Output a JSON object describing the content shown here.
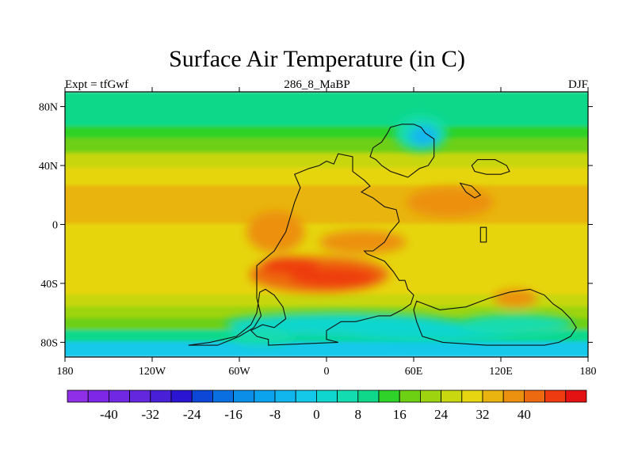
{
  "title": "Surface Air Temperature (in C)",
  "subtitle_left": "Expt = tfGwf",
  "subtitle_center": "286_8_MaBP",
  "subtitle_right": "DJF",
  "map": {
    "lon_range": [
      -180,
      180
    ],
    "lat_range": [
      -90,
      90
    ],
    "lon_ticks": [
      {
        "value": -180,
        "label": "180"
      },
      {
        "value": -120,
        "label": "120W"
      },
      {
        "value": -60,
        "label": "60W"
      },
      {
        "value": 0,
        "label": "0"
      },
      {
        "value": 60,
        "label": "60E"
      },
      {
        "value": 120,
        "label": "120E"
      },
      {
        "value": 180,
        "label": "180"
      }
    ],
    "lat_ticks": [
      {
        "value": 80,
        "label": "80N"
      },
      {
        "value": 40,
        "label": "40N"
      },
      {
        "value": 0,
        "label": "0"
      },
      {
        "value": -40,
        "label": "40S"
      },
      {
        "value": -80,
        "label": "80S"
      }
    ]
  },
  "colorbar": {
    "min": -48,
    "max": 48,
    "step": 4,
    "colors": [
      "#8f2fe8",
      "#7f27e6",
      "#7028e2",
      "#6327de",
      "#4a1fd8",
      "#2a16d2",
      "#0d47d8",
      "#0a6fe0",
      "#0a8ee8",
      "#0ca3ee",
      "#12b6ef",
      "#14c8ea",
      "#10d6d0",
      "#13dcb0",
      "#0fd88a",
      "#2ed228",
      "#6dd012",
      "#9ed40f",
      "#c8d70f",
      "#e6d510",
      "#e9b410",
      "#ec9010",
      "#ed6a10",
      "#ee3c10",
      "#e41212"
    ],
    "labels": [
      {
        "value": -40,
        "label": "-40"
      },
      {
        "value": -32,
        "label": "-32"
      },
      {
        "value": -24,
        "label": "-24"
      },
      {
        "value": -16,
        "label": "-16"
      },
      {
        "value": -8,
        "label": "-8"
      },
      {
        "value": 0,
        "label": "0"
      },
      {
        "value": 8,
        "label": "8"
      },
      {
        "value": 16,
        "label": "16"
      },
      {
        "value": 24,
        "label": "24"
      },
      {
        "value": 32,
        "label": "32"
      },
      {
        "value": 40,
        "label": "40"
      }
    ]
  },
  "temperature_bands": [
    {
      "lat_min": 66,
      "lat_max": 90,
      "temp_c": 4
    },
    {
      "lat_min": 58,
      "lat_max": 66,
      "temp_c": 10
    },
    {
      "lat_min": 48,
      "lat_max": 58,
      "temp_c": 15
    },
    {
      "lat_min": 38,
      "lat_max": 48,
      "temp_c": 20
    },
    {
      "lat_min": 26,
      "lat_max": 38,
      "temp_c": 24
    },
    {
      "lat_min": 0,
      "lat_max": 26,
      "temp_c": 28
    },
    {
      "lat_min": -30,
      "lat_max": 0,
      "temp_c": 27
    },
    {
      "lat_min": -48,
      "lat_max": -30,
      "temp_c": 25
    },
    {
      "lat_min": -56,
      "lat_max": -48,
      "temp_c": 21
    },
    {
      "lat_min": -64,
      "lat_max": -56,
      "temp_c": 16
    },
    {
      "lat_min": -72,
      "lat_max": -64,
      "temp_c": 12
    },
    {
      "lat_min": -80,
      "lat_max": -72,
      "temp_c": 6
    },
    {
      "lat_min": -90,
      "lat_max": -80,
      "temp_c": -6
    }
  ],
  "temperature_patches": [
    {
      "lon": -5,
      "lat": -34,
      "rlon": 48,
      "rlat": 12,
      "temp_c": 36
    },
    {
      "lon": 5,
      "lat": -36,
      "rlon": 30,
      "rlat": 7,
      "temp_c": 42
    },
    {
      "lon": -25,
      "lat": -28,
      "rlon": 20,
      "rlat": 6,
      "temp_c": 40
    },
    {
      "lon": -35,
      "lat": -5,
      "rlon": 20,
      "rlat": 14,
      "temp_c": 32
    },
    {
      "lon": 25,
      "lat": -12,
      "rlon": 30,
      "rlat": 8,
      "temp_c": 32
    },
    {
      "lon": 85,
      "lat": 15,
      "rlon": 30,
      "rlat": 10,
      "temp_c": 32
    },
    {
      "lon": 130,
      "lat": -50,
      "rlon": 15,
      "rlat": 6,
      "temp_c": 33
    },
    {
      "lon": 65,
      "lat": 62,
      "rlon": 18,
      "rlat": 12,
      "temp_c": 0
    },
    {
      "lon": 67,
      "lat": 60,
      "rlon": 10,
      "rlat": 7,
      "temp_c": -10
    },
    {
      "lon": 10,
      "lat": -68,
      "rlon": 80,
      "rlat": 8,
      "temp_c": -2
    },
    {
      "lon": 70,
      "lat": -72,
      "rlon": 70,
      "rlat": 7,
      "temp_c": -4
    },
    {
      "lon": 130,
      "lat": -68,
      "rlon": 40,
      "rlat": 7,
      "temp_c": 0
    },
    {
      "lon": -45,
      "lat": -76,
      "rlon": 22,
      "rlat": 6,
      "temp_c": 0
    }
  ],
  "coastlines": [
    {
      "name": "pangaea-west",
      "points": [
        [
          -95,
          -82
        ],
        [
          -75,
          -82
        ],
        [
          -60,
          -76
        ],
        [
          -50,
          -70
        ],
        [
          -45,
          -62
        ],
        [
          -48,
          -50
        ],
        [
          -48,
          -28
        ],
        [
          -36,
          -18
        ],
        [
          -28,
          -5
        ],
        [
          -25,
          5
        ],
        [
          -22,
          15
        ],
        [
          -18,
          25
        ],
        [
          -22,
          34
        ],
        [
          -12,
          38
        ],
        [
          -5,
          40
        ],
        [
          0,
          43
        ],
        [
          5,
          41
        ],
        [
          8,
          48
        ],
        [
          18,
          46
        ],
        [
          18,
          36
        ],
        [
          26,
          30
        ],
        [
          30,
          26
        ],
        [
          24,
          22
        ],
        [
          32,
          18
        ],
        [
          40,
          12
        ],
        [
          48,
          10
        ],
        [
          50,
          2
        ],
        [
          44,
          -5
        ],
        [
          40,
          -12
        ],
        [
          32,
          -18
        ],
        [
          26,
          -18
        ],
        [
          28,
          -20
        ],
        [
          40,
          -25
        ],
        [
          46,
          -32
        ],
        [
          50,
          -38
        ],
        [
          54,
          -38
        ],
        [
          56,
          -44
        ],
        [
          60,
          -48
        ],
        [
          58,
          -54
        ],
        [
          52,
          -58
        ],
        [
          44,
          -62
        ],
        [
          36,
          -62
        ],
        [
          28,
          -64
        ],
        [
          20,
          -66
        ],
        [
          10,
          -66
        ],
        [
          0,
          -72
        ],
        [
          0,
          -78
        ],
        [
          8,
          -80
        ],
        [
          -40,
          -82
        ],
        [
          -40,
          -78
        ],
        [
          -48,
          -76
        ],
        [
          -52,
          -72
        ],
        [
          -44,
          -68
        ],
        [
          -36,
          -70
        ],
        [
          -28,
          -64
        ],
        [
          -30,
          -56
        ],
        [
          -36,
          -48
        ],
        [
          -42,
          -44
        ],
        [
          -46,
          -46
        ],
        [
          -48,
          -60
        ],
        [
          -52,
          -68
        ],
        [
          -62,
          -76
        ],
        [
          -80,
          -80
        ],
        [
          -95,
          -82
        ]
      ]
    },
    {
      "name": "siberia",
      "points": [
        [
          30,
          46
        ],
        [
          32,
          52
        ],
        [
          38,
          56
        ],
        [
          42,
          62
        ],
        [
          44,
          66
        ],
        [
          52,
          68
        ],
        [
          60,
          68
        ],
        [
          65,
          66
        ],
        [
          68,
          62
        ],
        [
          74,
          58
        ],
        [
          74,
          46
        ],
        [
          70,
          40
        ],
        [
          64,
          38
        ],
        [
          56,
          32
        ],
        [
          50,
          34
        ],
        [
          44,
          36
        ],
        [
          38,
          40
        ],
        [
          34,
          44
        ],
        [
          30,
          46
        ]
      ]
    },
    {
      "name": "east-block",
      "points": [
        [
          100,
          40
        ],
        [
          104,
          44
        ],
        [
          116,
          44
        ],
        [
          124,
          40
        ],
        [
          126,
          36
        ],
        [
          120,
          34
        ],
        [
          110,
          34
        ],
        [
          102,
          36
        ],
        [
          100,
          40
        ]
      ]
    },
    {
      "name": "east-fragment",
      "points": [
        [
          92,
          28
        ],
        [
          100,
          26
        ],
        [
          106,
          20
        ],
        [
          102,
          18
        ],
        [
          96,
          22
        ],
        [
          92,
          28
        ]
      ]
    },
    {
      "name": "cathaysia-sliver",
      "points": [
        [
          106,
          -2
        ],
        [
          110,
          -2
        ],
        [
          110,
          -12
        ],
        [
          106,
          -12
        ],
        [
          106,
          -2
        ]
      ]
    },
    {
      "name": "gondwana-east",
      "points": [
        [
          62,
          -52
        ],
        [
          78,
          -58
        ],
        [
          96,
          -56
        ],
        [
          112,
          -50
        ],
        [
          126,
          -46
        ],
        [
          140,
          -44
        ],
        [
          150,
          -48
        ],
        [
          156,
          -54
        ],
        [
          162,
          -58
        ],
        [
          168,
          -64
        ],
        [
          172,
          -70
        ],
        [
          168,
          -76
        ],
        [
          160,
          -80
        ],
        [
          150,
          -82
        ],
        [
          110,
          -82
        ],
        [
          80,
          -80
        ],
        [
          66,
          -76
        ],
        [
          62,
          -66
        ],
        [
          60,
          -58
        ],
        [
          62,
          -52
        ]
      ]
    }
  ]
}
